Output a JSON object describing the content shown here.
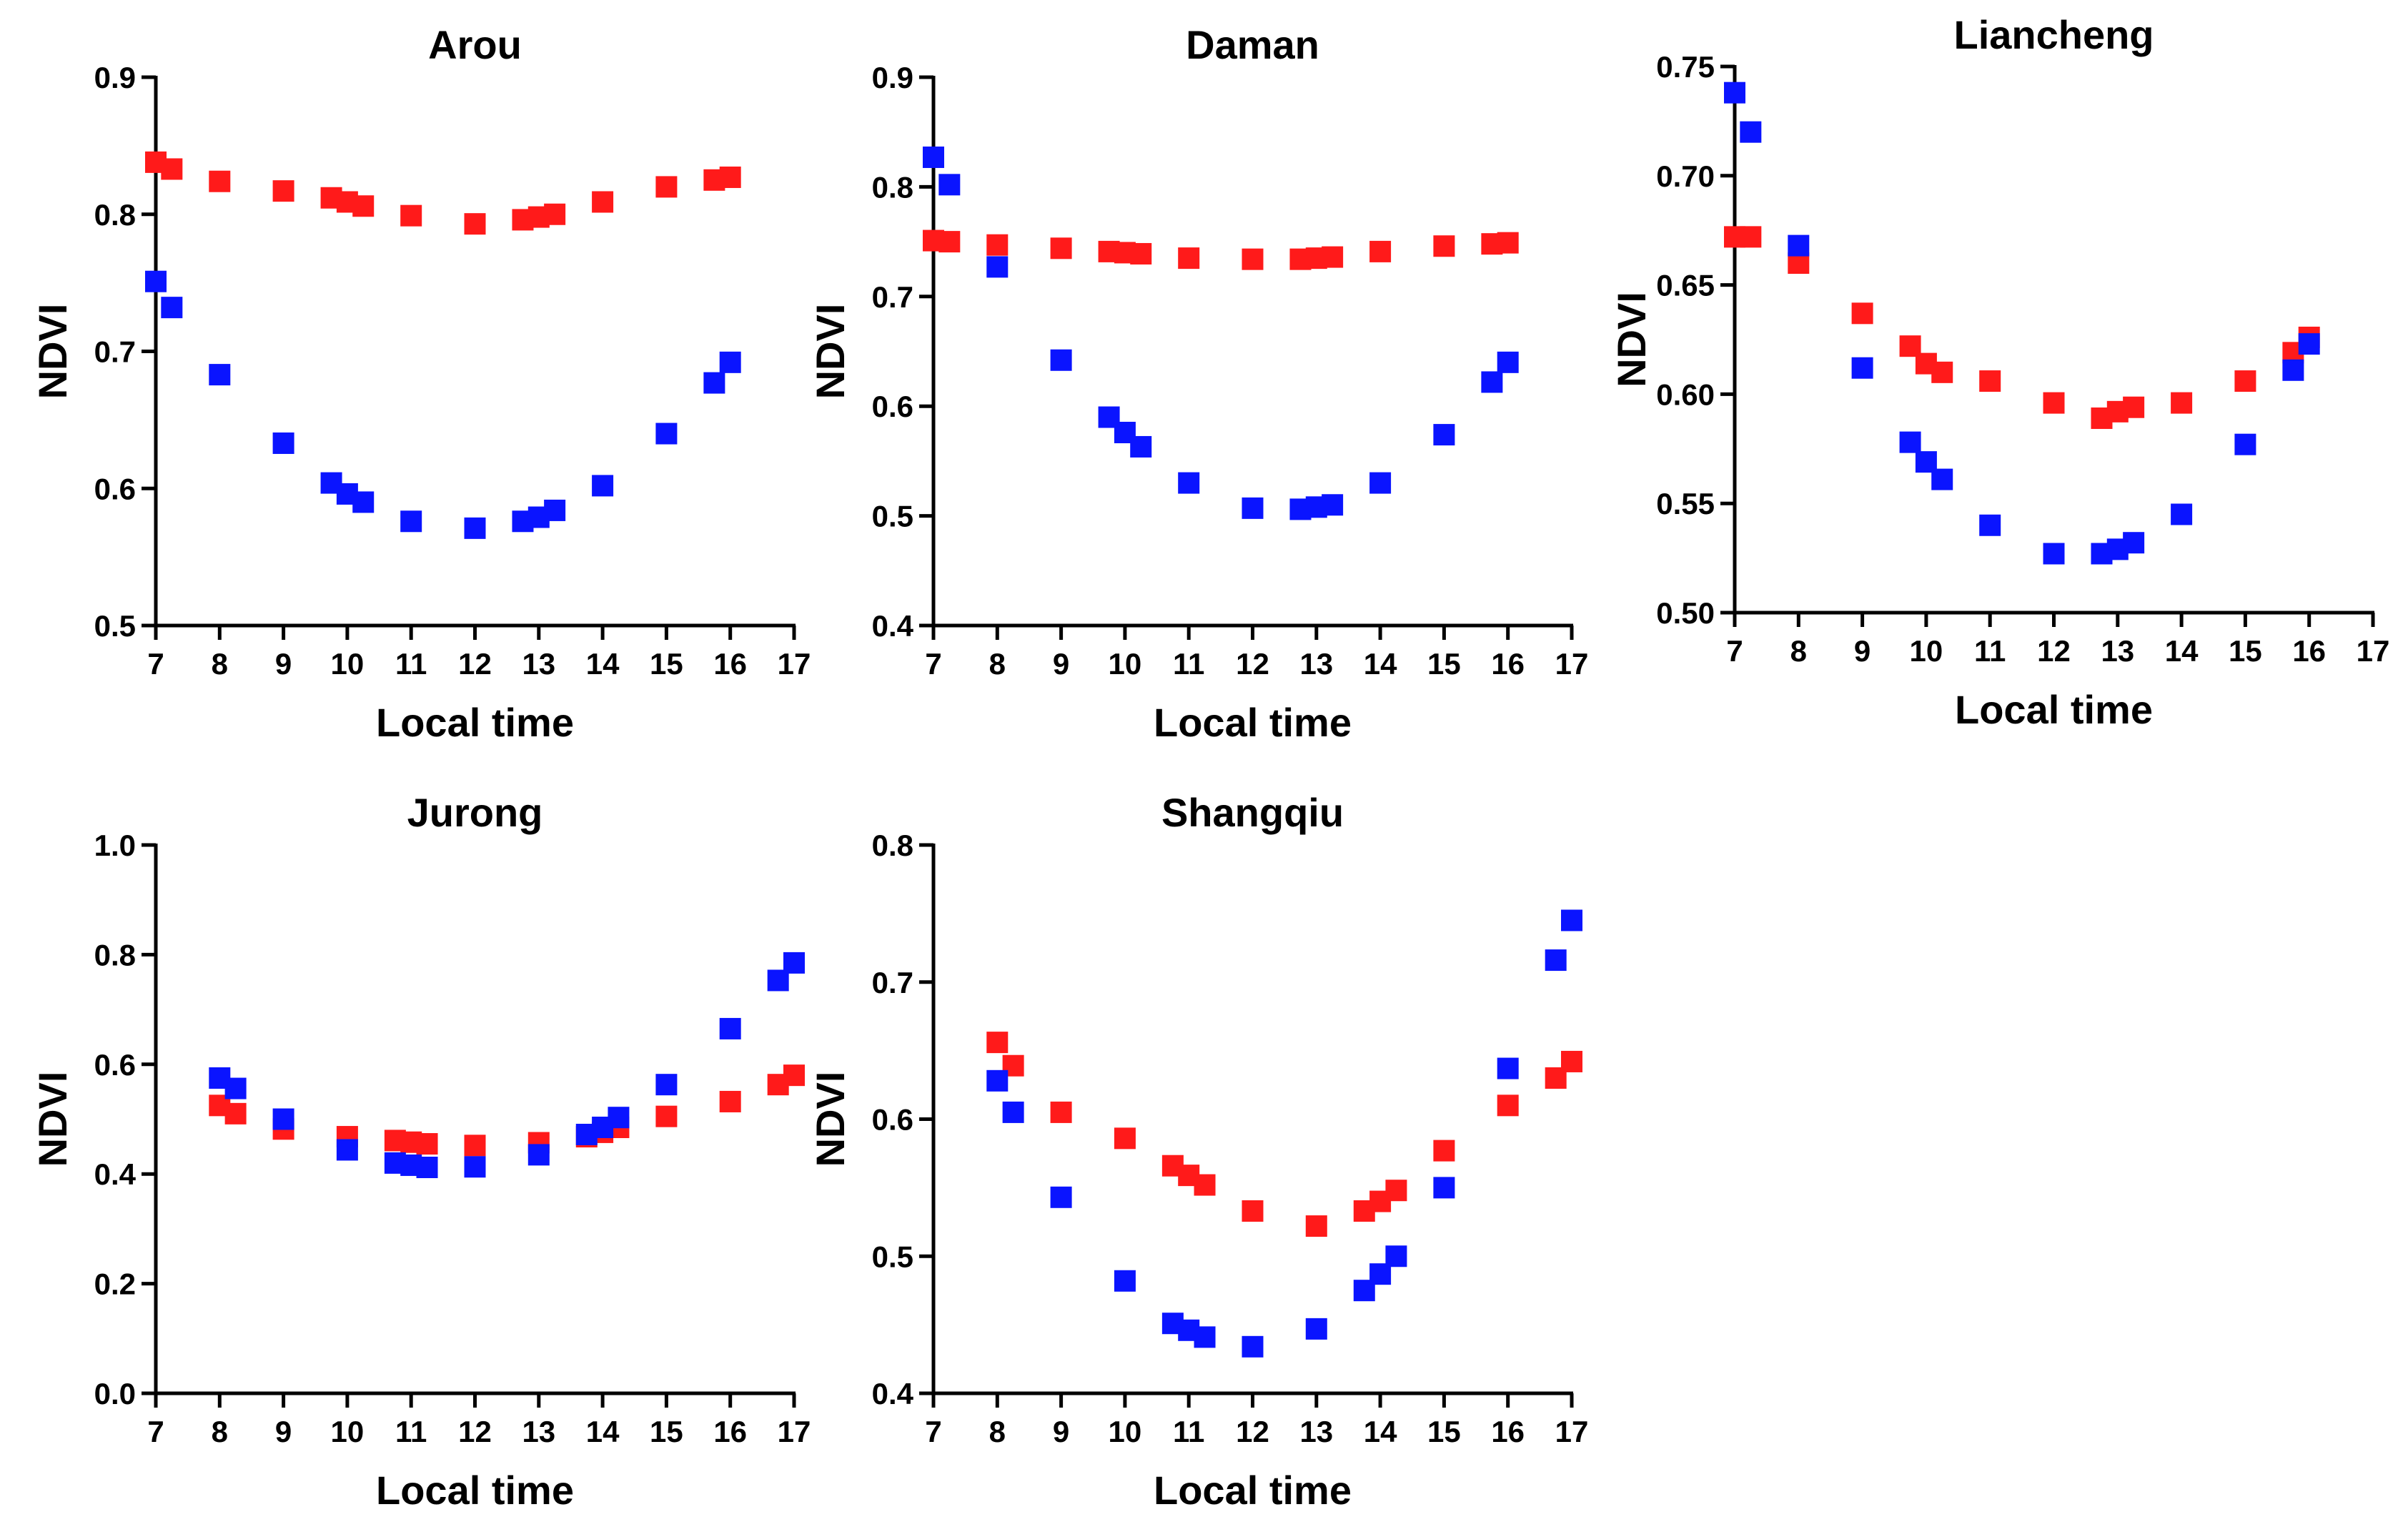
{
  "chart_data": [
    {
      "type": "scatter",
      "title": "Arou",
      "xlabel": "Local time",
      "ylabel": "NDVI",
      "xlim": [
        7,
        17
      ],
      "ylim": [
        0.5,
        0.9
      ],
      "xticks": [
        7,
        8,
        9,
        10,
        11,
        12,
        13,
        14,
        15,
        16,
        17
      ],
      "yticks": [
        "0.5",
        "0.6",
        "0.7",
        "0.8",
        "0.9"
      ],
      "series": [
        {
          "name": "red",
          "color": "#ff1a1a",
          "x": [
            7.0,
            7.25,
            8.0,
            9.0,
            9.75,
            10.0,
            10.25,
            11.0,
            12.0,
            12.75,
            13.0,
            13.25,
            14.0,
            15.0,
            15.75,
            16.0
          ],
          "y": [
            0.838,
            0.833,
            0.824,
            0.817,
            0.812,
            0.809,
            0.806,
            0.799,
            0.793,
            0.796,
            0.798,
            0.8,
            0.809,
            0.82,
            0.825,
            0.827
          ]
        },
        {
          "name": "blue",
          "color": "#0a14ff",
          "x": [
            7.0,
            7.25,
            8.0,
            9.0,
            9.75,
            10.0,
            10.25,
            11.0,
            12.0,
            12.75,
            13.0,
            13.25,
            14.0,
            15.0,
            15.75,
            16.0
          ],
          "y": [
            0.751,
            0.732,
            0.683,
            0.633,
            0.604,
            0.596,
            0.59,
            0.576,
            0.571,
            0.576,
            0.579,
            0.584,
            0.602,
            0.64,
            0.677,
            0.692
          ]
        }
      ]
    },
    {
      "type": "scatter",
      "title": "Daman",
      "xlabel": "Local time",
      "ylabel": "NDVI",
      "xlim": [
        7,
        17
      ],
      "ylim": [
        0.4,
        0.9
      ],
      "xticks": [
        7,
        8,
        9,
        10,
        11,
        12,
        13,
        14,
        15,
        16,
        17
      ],
      "yticks": [
        "0.4",
        "0.5",
        "0.6",
        "0.7",
        "0.8",
        "0.9"
      ],
      "series": [
        {
          "name": "red",
          "color": "#ff1a1a",
          "x": [
            7.0,
            7.25,
            8.0,
            9.0,
            9.75,
            10.0,
            10.25,
            11.0,
            12.0,
            12.75,
            13.0,
            13.25,
            14.0,
            15.0,
            15.75,
            16.0
          ],
          "y": [
            0.751,
            0.75,
            0.747,
            0.744,
            0.741,
            0.74,
            0.739,
            0.735,
            0.734,
            0.734,
            0.735,
            0.736,
            0.741,
            0.746,
            0.748,
            0.749
          ]
        },
        {
          "name": "blue",
          "color": "#0a14ff",
          "x": [
            7.0,
            7.25,
            8.0,
            9.0,
            9.75,
            10.0,
            10.25,
            11.0,
            12.0,
            12.75,
            13.0,
            13.25,
            14.0,
            15.0,
            15.75,
            16.0
          ],
          "y": [
            0.827,
            0.802,
            0.727,
            0.642,
            0.59,
            0.576,
            0.563,
            0.53,
            0.507,
            0.506,
            0.508,
            0.51,
            0.53,
            0.574,
            0.622,
            0.64
          ]
        }
      ]
    },
    {
      "type": "scatter",
      "title": "Liancheng",
      "xlabel": "Local time",
      "ylabel": "NDVI",
      "xlim": [
        7,
        17
      ],
      "ylim": [
        0.5,
        0.75
      ],
      "xticks": [
        7,
        8,
        9,
        10,
        11,
        12,
        13,
        14,
        15,
        16,
        17
      ],
      "yticks": [
        "0.50",
        "0.55",
        "0.60",
        "0.65",
        "0.70",
        "0.75"
      ],
      "series": [
        {
          "name": "red",
          "color": "#ff1a1a",
          "x": [
            7.0,
            7.25,
            8.0,
            9.0,
            9.75,
            10.0,
            10.25,
            11.0,
            12.0,
            12.75,
            13.0,
            13.25,
            14.0,
            15.0,
            15.75,
            16.0
          ],
          "y": [
            0.672,
            0.672,
            0.66,
            0.637,
            0.622,
            0.614,
            0.61,
            0.606,
            0.596,
            0.589,
            0.592,
            0.594,
            0.596,
            0.606,
            0.619,
            0.626
          ]
        },
        {
          "name": "blue",
          "color": "#0a14ff",
          "x": [
            7.0,
            7.25,
            8.0,
            9.0,
            9.75,
            10.0,
            10.25,
            11.0,
            12.0,
            12.75,
            13.0,
            13.25,
            14.0,
            15.0,
            15.75,
            16.0
          ],
          "y": [
            0.738,
            0.72,
            0.668,
            0.612,
            0.578,
            0.569,
            0.561,
            0.54,
            0.527,
            0.527,
            0.529,
            0.532,
            0.545,
            0.577,
            0.611,
            0.623
          ]
        }
      ]
    },
    {
      "type": "scatter",
      "title": "Jurong",
      "xlabel": "Local time",
      "ylabel": "NDVI",
      "xlim": [
        7,
        17
      ],
      "ylim": [
        0.0,
        1.0
      ],
      "xticks": [
        7,
        8,
        9,
        10,
        11,
        12,
        13,
        14,
        15,
        16,
        17
      ],
      "yticks": [
        "0.0",
        "0.2",
        "0.4",
        "0.6",
        "0.8",
        "1.0"
      ],
      "series": [
        {
          "name": "red",
          "color": "#ff1a1a",
          "x": [
            8.0,
            8.25,
            9.0,
            10.0,
            10.75,
            11.0,
            11.25,
            12.0,
            13.0,
            13.75,
            14.0,
            14.25,
            15.0,
            16.0,
            16.75,
            17.0
          ],
          "y": [
            0.525,
            0.51,
            0.482,
            0.468,
            0.461,
            0.458,
            0.455,
            0.452,
            0.457,
            0.468,
            0.476,
            0.485,
            0.505,
            0.532,
            0.563,
            0.58
          ]
        },
        {
          "name": "blue",
          "color": "#0a14ff",
          "x": [
            8.0,
            8.25,
            9.0,
            10.0,
            10.75,
            11.0,
            11.25,
            12.0,
            13.0,
            13.75,
            14.0,
            14.25,
            15.0,
            16.0,
            16.75,
            17.0
          ],
          "y": [
            0.575,
            0.556,
            0.5,
            0.444,
            0.42,
            0.416,
            0.412,
            0.413,
            0.435,
            0.472,
            0.485,
            0.503,
            0.563,
            0.665,
            0.753,
            0.785
          ]
        }
      ]
    },
    {
      "type": "scatter",
      "title": "Shangqiu",
      "xlabel": "Local time",
      "ylabel": "NDVI",
      "xlim": [
        7,
        17
      ],
      "ylim": [
        0.4,
        0.8
      ],
      "xticks": [
        7,
        8,
        9,
        10,
        11,
        12,
        13,
        14,
        15,
        16,
        17
      ],
      "yticks": [
        "0.4",
        "0.5",
        "0.6",
        "0.7",
        "0.8"
      ],
      "series": [
        {
          "name": "red",
          "color": "#ff1a1a",
          "x": [
            8.0,
            8.25,
            9.0,
            10.0,
            10.75,
            11.0,
            11.25,
            12.0,
            13.0,
            13.75,
            14.0,
            14.25,
            15.0,
            16.0,
            16.75,
            17.0
          ],
          "y": [
            0.656,
            0.639,
            0.605,
            0.586,
            0.566,
            0.559,
            0.552,
            0.533,
            0.522,
            0.533,
            0.54,
            0.548,
            0.577,
            0.61,
            0.63,
            0.642
          ]
        },
        {
          "name": "blue",
          "color": "#0a14ff",
          "x": [
            8.0,
            8.25,
            9.0,
            10.0,
            10.75,
            11.0,
            11.25,
            12.0,
            13.0,
            13.75,
            14.0,
            14.25,
            15.0,
            16.0,
            16.75,
            17.0
          ],
          "y": [
            0.628,
            0.605,
            0.543,
            0.482,
            0.451,
            0.446,
            0.441,
            0.434,
            0.447,
            0.475,
            0.487,
            0.5,
            0.55,
            0.637,
            0.716,
            0.745
          ]
        }
      ]
    }
  ]
}
